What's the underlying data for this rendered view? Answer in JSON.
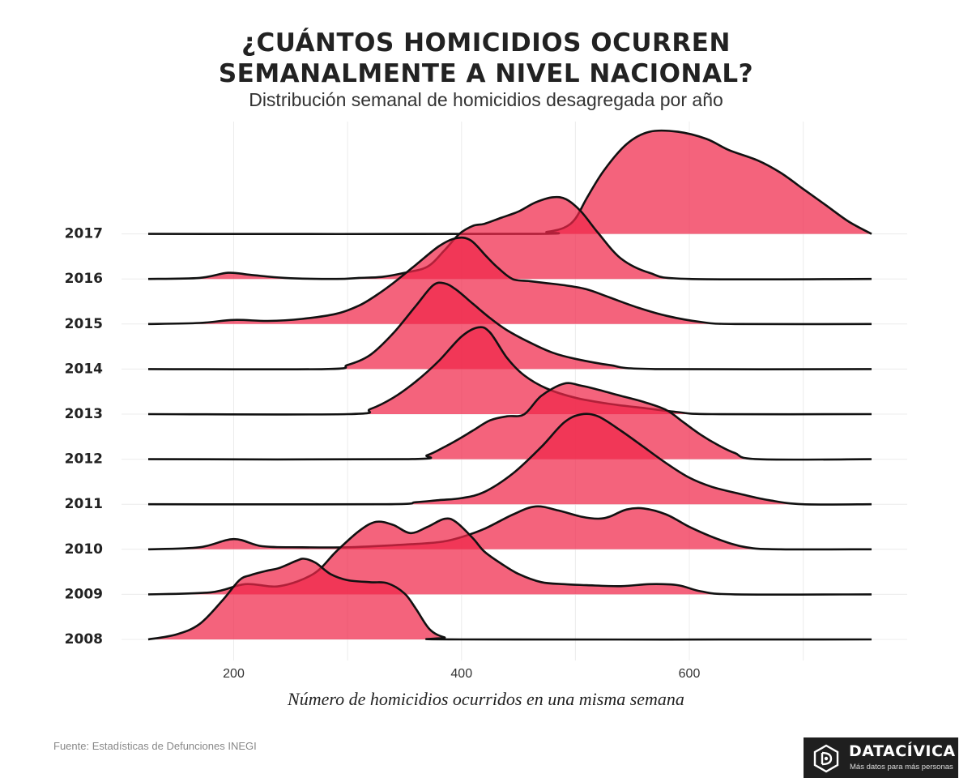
{
  "title_lines": [
    "¿CUÁNTOS HOMICIDIOS OCURREN",
    "SEMANALMENTE A NIVEL NACIONAL?"
  ],
  "subtitle": "Distribución semanal de homicidios desagregada por año",
  "source": "Fuente: Estadísticas de Defunciones INEGI",
  "brand": {
    "name": "DATACÍVICA",
    "tagline": "Más datos para más personas",
    "icon": "datacivica-logo-icon"
  },
  "colors": {
    "fill": "#f0274a",
    "stroke": "#111111",
    "grid": "#ececec",
    "brand_bg": "#1f1f1f"
  },
  "chart_data": {
    "type": "ridgeline",
    "title": "¿CUÁNTOS HOMICIDIOS OCURREN SEMANALMENTE A NIVEL NACIONAL?",
    "subtitle": "Distribución semanal de homicidios desagregada por año",
    "xlabel": "Número de homicidios ocurridos en una misma semana",
    "ylabel": "",
    "xlim": [
      120,
      760
    ],
    "xticks": [
      200,
      400,
      600
    ],
    "grid": true,
    "series_order_bottom_to_top": [
      "2008",
      "2009",
      "2010",
      "2011",
      "2012",
      "2013",
      "2014",
      "2015",
      "2016",
      "2017"
    ],
    "series": [
      {
        "name": "2008",
        "curve": [
          [
            125,
            0
          ],
          [
            150,
            0.05
          ],
          [
            170,
            0.15
          ],
          [
            190,
            0.38
          ],
          [
            205,
            0.58
          ],
          [
            215,
            0.63
          ],
          [
            228,
            0.67
          ],
          [
            240,
            0.7
          ],
          [
            255,
            0.77
          ],
          [
            262,
            0.79
          ],
          [
            272,
            0.75
          ],
          [
            285,
            0.64
          ],
          [
            300,
            0.58
          ],
          [
            320,
            0.56
          ],
          [
            335,
            0.55
          ],
          [
            350,
            0.45
          ],
          [
            360,
            0.3
          ],
          [
            372,
            0.1
          ],
          [
            385,
            0.02
          ],
          [
            400,
            0
          ],
          [
            760,
            0
          ]
        ]
      },
      {
        "name": "2009",
        "curve": [
          [
            125,
            0
          ],
          [
            180,
            0.02
          ],
          [
            210,
            0.1
          ],
          [
            240,
            0.08
          ],
          [
            270,
            0.2
          ],
          [
            290,
            0.42
          ],
          [
            310,
            0.62
          ],
          [
            325,
            0.71
          ],
          [
            340,
            0.68
          ],
          [
            355,
            0.6
          ],
          [
            370,
            0.66
          ],
          [
            385,
            0.74
          ],
          [
            395,
            0.71
          ],
          [
            410,
            0.55
          ],
          [
            420,
            0.42
          ],
          [
            435,
            0.3
          ],
          [
            450,
            0.2
          ],
          [
            470,
            0.12
          ],
          [
            490,
            0.1
          ],
          [
            510,
            0.09
          ],
          [
            540,
            0.08
          ],
          [
            565,
            0.1
          ],
          [
            590,
            0.09
          ],
          [
            610,
            0.03
          ],
          [
            640,
            0
          ],
          [
            760,
            0
          ]
        ]
      },
      {
        "name": "2010",
        "curve": [
          [
            125,
            0
          ],
          [
            170,
            0.02
          ],
          [
            200,
            0.1
          ],
          [
            225,
            0.03
          ],
          [
            260,
            0.02
          ],
          [
            300,
            0.02
          ],
          [
            340,
            0.04
          ],
          [
            380,
            0.07
          ],
          [
            400,
            0.12
          ],
          [
            420,
            0.2
          ],
          [
            445,
            0.34
          ],
          [
            465,
            0.42
          ],
          [
            485,
            0.38
          ],
          [
            505,
            0.32
          ],
          [
            520,
            0.3
          ],
          [
            530,
            0.32
          ],
          [
            545,
            0.39
          ],
          [
            560,
            0.4
          ],
          [
            580,
            0.34
          ],
          [
            600,
            0.22
          ],
          [
            625,
            0.1
          ],
          [
            650,
            0.02
          ],
          [
            680,
            0
          ],
          [
            760,
            0
          ]
        ]
      },
      {
        "name": "2011",
        "curve": [
          [
            125,
            0
          ],
          [
            330,
            0
          ],
          [
            360,
            0.02
          ],
          [
            380,
            0.04
          ],
          [
            400,
            0.06
          ],
          [
            420,
            0.12
          ],
          [
            445,
            0.3
          ],
          [
            470,
            0.56
          ],
          [
            490,
            0.8
          ],
          [
            505,
            0.88
          ],
          [
            520,
            0.86
          ],
          [
            540,
            0.72
          ],
          [
            560,
            0.56
          ],
          [
            580,
            0.4
          ],
          [
            600,
            0.26
          ],
          [
            620,
            0.17
          ],
          [
            645,
            0.1
          ],
          [
            670,
            0.04
          ],
          [
            700,
            0
          ],
          [
            760,
            0
          ]
        ]
      },
      {
        "name": "2012",
        "curve": [
          [
            125,
            0
          ],
          [
            350,
            0
          ],
          [
            370,
            0.04
          ],
          [
            385,
            0.12
          ],
          [
            395,
            0.18
          ],
          [
            410,
            0.28
          ],
          [
            425,
            0.38
          ],
          [
            440,
            0.42
          ],
          [
            455,
            0.44
          ],
          [
            470,
            0.62
          ],
          [
            490,
            0.74
          ],
          [
            505,
            0.72
          ],
          [
            520,
            0.68
          ],
          [
            540,
            0.62
          ],
          [
            560,
            0.56
          ],
          [
            580,
            0.48
          ],
          [
            595,
            0.36
          ],
          [
            610,
            0.24
          ],
          [
            625,
            0.14
          ],
          [
            640,
            0.06
          ],
          [
            660,
            0
          ],
          [
            760,
            0
          ]
        ]
      },
      {
        "name": "2013",
        "curve": [
          [
            125,
            0
          ],
          [
            300,
            0
          ],
          [
            320,
            0.05
          ],
          [
            340,
            0.16
          ],
          [
            360,
            0.32
          ],
          [
            380,
            0.52
          ],
          [
            400,
            0.76
          ],
          [
            415,
            0.85
          ],
          [
            425,
            0.8
          ],
          [
            440,
            0.55
          ],
          [
            455,
            0.38
          ],
          [
            475,
            0.25
          ],
          [
            500,
            0.16
          ],
          [
            530,
            0.1
          ],
          [
            560,
            0.06
          ],
          [
            590,
            0.02
          ],
          [
            620,
            0
          ],
          [
            760,
            0
          ]
        ]
      },
      {
        "name": "2014",
        "curve": [
          [
            125,
            0
          ],
          [
            280,
            0
          ],
          [
            300,
            0.04
          ],
          [
            320,
            0.14
          ],
          [
            340,
            0.35
          ],
          [
            360,
            0.62
          ],
          [
            375,
            0.82
          ],
          [
            385,
            0.84
          ],
          [
            395,
            0.78
          ],
          [
            410,
            0.64
          ],
          [
            425,
            0.5
          ],
          [
            440,
            0.38
          ],
          [
            460,
            0.26
          ],
          [
            480,
            0.16
          ],
          [
            500,
            0.1
          ],
          [
            530,
            0.04
          ],
          [
            570,
            0
          ],
          [
            760,
            0
          ]
        ]
      },
      {
        "name": "2015",
        "curve": [
          [
            125,
            0
          ],
          [
            170,
            0.01
          ],
          [
            200,
            0.04
          ],
          [
            230,
            0.03
          ],
          [
            260,
            0.05
          ],
          [
            290,
            0.1
          ],
          [
            310,
            0.18
          ],
          [
            325,
            0.28
          ],
          [
            340,
            0.4
          ],
          [
            360,
            0.58
          ],
          [
            380,
            0.76
          ],
          [
            395,
            0.84
          ],
          [
            408,
            0.82
          ],
          [
            422,
            0.66
          ],
          [
            432,
            0.55
          ],
          [
            445,
            0.44
          ],
          [
            460,
            0.42
          ],
          [
            475,
            0.4
          ],
          [
            490,
            0.38
          ],
          [
            510,
            0.34
          ],
          [
            530,
            0.26
          ],
          [
            555,
            0.16
          ],
          [
            580,
            0.08
          ],
          [
            610,
            0.02
          ],
          [
            640,
            0
          ],
          [
            760,
            0
          ]
        ]
      },
      {
        "name": "2016",
        "curve": [
          [
            125,
            0
          ],
          [
            170,
            0.01
          ],
          [
            195,
            0.06
          ],
          [
            215,
            0.04
          ],
          [
            245,
            0.01
          ],
          [
            290,
            0
          ],
          [
            310,
            0.01
          ],
          [
            330,
            0.02
          ],
          [
            350,
            0.06
          ],
          [
            370,
            0.12
          ],
          [
            385,
            0.28
          ],
          [
            398,
            0.44
          ],
          [
            410,
            0.52
          ],
          [
            420,
            0.54
          ],
          [
            435,
            0.6
          ],
          [
            450,
            0.66
          ],
          [
            465,
            0.75
          ],
          [
            480,
            0.8
          ],
          [
            492,
            0.78
          ],
          [
            505,
            0.66
          ],
          [
            520,
            0.45
          ],
          [
            540,
            0.2
          ],
          [
            565,
            0.06
          ],
          [
            600,
            0
          ],
          [
            760,
            0
          ]
        ]
      },
      {
        "name": "2017",
        "curve": [
          [
            125,
            0
          ],
          [
            455,
            0
          ],
          [
            475,
            0.02
          ],
          [
            490,
            0.06
          ],
          [
            500,
            0.15
          ],
          [
            510,
            0.35
          ],
          [
            525,
            0.62
          ],
          [
            545,
            0.88
          ],
          [
            565,
            1.0
          ],
          [
            590,
            1.0
          ],
          [
            615,
            0.93
          ],
          [
            635,
            0.82
          ],
          [
            660,
            0.72
          ],
          [
            680,
            0.6
          ],
          [
            700,
            0.44
          ],
          [
            720,
            0.28
          ],
          [
            740,
            0.12
          ],
          [
            760,
            0
          ]
        ]
      }
    ]
  }
}
